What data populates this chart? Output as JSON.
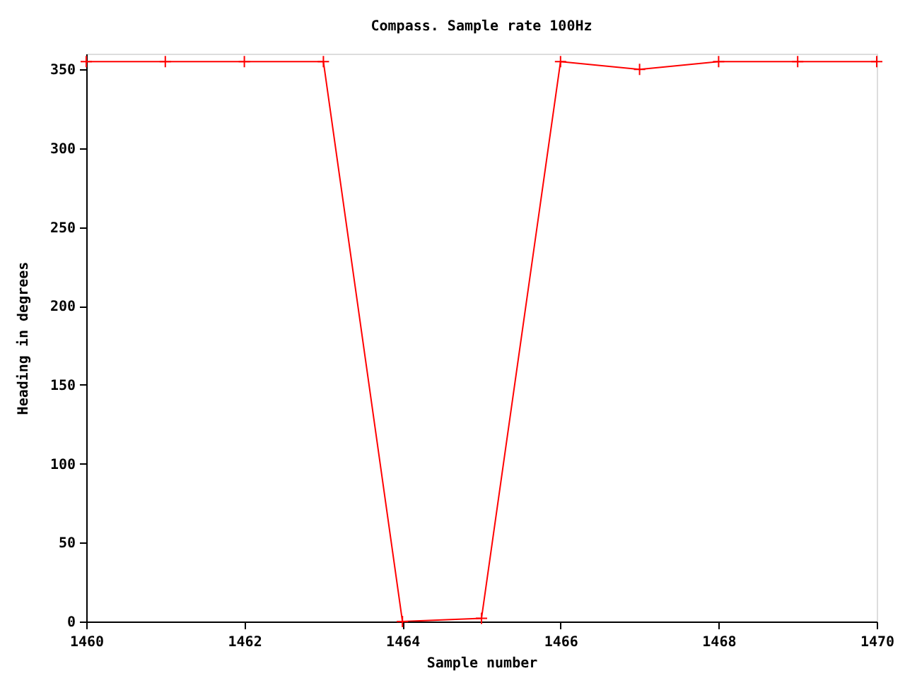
{
  "chart_data": {
    "type": "line",
    "title": "Compass. Sample rate 100Hz",
    "xlabel": "Sample number",
    "ylabel": "Heading in degrees",
    "x": [
      1460,
      1461,
      1462,
      1463,
      1464,
      1465,
      1466,
      1467,
      1468,
      1469,
      1470
    ],
    "series": [
      {
        "color": "#ff0000",
        "values": [
          355,
          355,
          355,
          355,
          0,
          2,
          355,
          350,
          355,
          355,
          355
        ]
      }
    ],
    "xlim": [
      1460,
      1470
    ],
    "ylim": [
      0,
      360
    ],
    "xticks": [
      1460,
      1462,
      1464,
      1466,
      1468,
      1470
    ],
    "yticks": [
      0,
      50,
      100,
      150,
      200,
      250,
      300,
      350
    ],
    "marker": "cross",
    "line_style": "solid"
  }
}
